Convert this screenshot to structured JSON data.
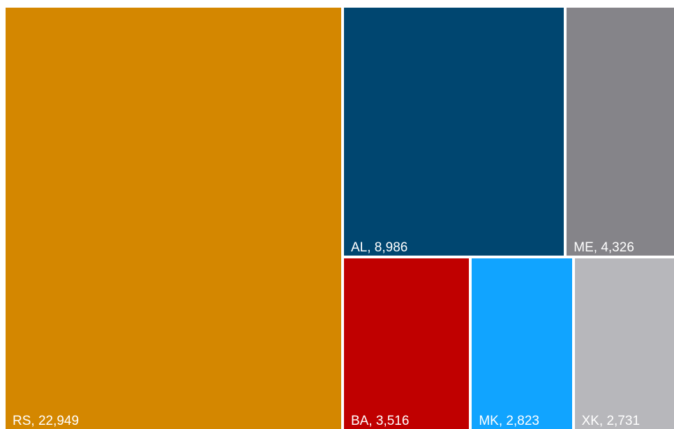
{
  "chart_data": {
    "type": "treemap",
    "items": [
      {
        "id": "RS",
        "label": "RS, 22,949",
        "value": 22949,
        "color": "#D48700"
      },
      {
        "id": "AL",
        "label": "AL, 8,986",
        "value": 8986,
        "color": "#004670"
      },
      {
        "id": "ME",
        "label": "ME, 4,326",
        "value": 4326,
        "color": "#858489"
      },
      {
        "id": "BA",
        "label": "BA, 3,516",
        "value": 3516,
        "color": "#C00000"
      },
      {
        "id": "MK",
        "label": "MK, 2,823",
        "value": 2823,
        "color": "#11A4FF"
      },
      {
        "id": "XK",
        "label": "XK, 2,731",
        "value": 2731,
        "color": "#B7B7BB"
      }
    ]
  }
}
